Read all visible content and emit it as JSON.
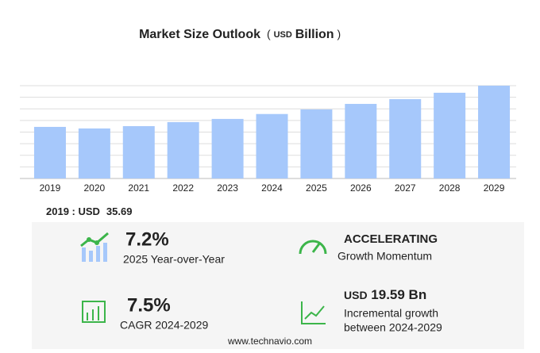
{
  "chart_data": {
    "type": "bar",
    "title": "Market Size Outlook",
    "unit_prefix": "USD",
    "unit": "Billion",
    "categories": [
      "2019",
      "2020",
      "2021",
      "2022",
      "2023",
      "2024",
      "2025",
      "2026",
      "2027",
      "2028",
      "2029"
    ],
    "values": [
      35.69,
      34.6,
      36.2,
      39.0,
      41.2,
      44.6,
      47.8,
      51.6,
      54.9,
      59.3,
      64.2
    ],
    "color": "#a6c8fb",
    "ylim": [
      0,
      64.2
    ],
    "grid": true
  },
  "summary": {
    "base_label": "2019 : USD",
    "yoy": {
      "value": "7.2%",
      "label": "2025 Year-over-Year"
    },
    "momentum": {
      "value": "ACCELERATING",
      "label": "Growth Momentum"
    },
    "cagr": {
      "value": "7.5%",
      "label": "CAGR 2024-2029"
    },
    "incremental": {
      "prefix": "USD",
      "value": "19.59 Bn",
      "label1": "Incremental growth",
      "label2": "between 2024-2029"
    }
  },
  "footer": "www.technavio.com"
}
